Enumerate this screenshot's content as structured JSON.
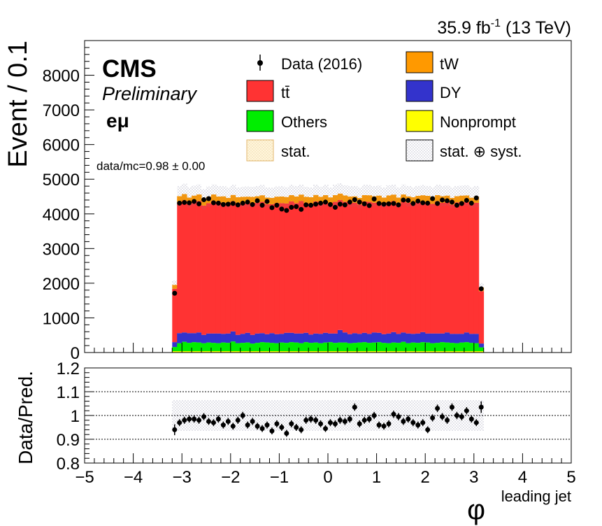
{
  "header": {
    "lumi_value": "35.9 fb",
    "lumi_exp": "-1",
    "lumi_energy": "(13 TeV)"
  },
  "labels": {
    "cms": "CMS",
    "preliminary": "Preliminary",
    "channel": "eμ",
    "data_mc": "data/mc=0.98 ± 0.00"
  },
  "legend": {
    "data": "Data (2016)",
    "ttbar": "tt̄",
    "others": "Others",
    "stat": "stat.",
    "tw": "tW",
    "dy": "DY",
    "nonprompt": "Nonprompt",
    "statsyst": "stat. ⊕ syst."
  },
  "colors": {
    "ttbar": "#ff3333",
    "tw": "#ff9900",
    "dy": "#3333cc",
    "others": "#00ee00",
    "nonprompt": "#ffff00",
    "data": "#000000"
  },
  "chart_data": [
    {
      "type": "bar",
      "stacked": true,
      "ylabel": "Event / 0.1",
      "xlim": [
        -5,
        5
      ],
      "ylim": [
        0,
        9000
      ],
      "yticks": [
        0,
        1000,
        2000,
        3000,
        4000,
        5000,
        6000,
        7000,
        8000
      ],
      "bin_width": 0.1,
      "x_start": -3.2,
      "components": {
        "nonprompt": [
          40,
          40,
          40,
          40,
          40,
          40,
          40,
          40,
          40,
          40,
          40,
          40,
          40,
          40,
          40,
          40,
          40,
          40,
          40,
          40,
          40,
          40,
          40,
          40,
          40,
          40,
          40,
          40,
          40,
          40,
          40,
          40,
          40,
          40,
          40,
          40,
          40,
          40,
          40,
          40,
          40,
          40,
          40,
          40,
          40,
          40,
          40,
          40,
          40,
          40,
          40,
          40,
          40,
          40,
          40,
          40,
          40,
          40,
          40,
          40,
          40,
          40,
          40,
          40
        ],
        "others": [
          120,
          230,
          270,
          240,
          260,
          250,
          230,
          250,
          240,
          230,
          250,
          240,
          280,
          230,
          240,
          250,
          220,
          240,
          260,
          250,
          240,
          230,
          250,
          240,
          260,
          250,
          230,
          260,
          240,
          250,
          230,
          250,
          260,
          240,
          250,
          250,
          230,
          240,
          250,
          260,
          240,
          250,
          260,
          240,
          230,
          250,
          240,
          270,
          230,
          250,
          240,
          260,
          250,
          230,
          240,
          260,
          250,
          240,
          230,
          250,
          260,
          240,
          230,
          110
        ],
        "dy": [
          140,
          290,
          270,
          280,
          260,
          290,
          240,
          260,
          270,
          280,
          250,
          270,
          290,
          240,
          260,
          280,
          250,
          270,
          260,
          240,
          280,
          260,
          250,
          290,
          270,
          260,
          280,
          270,
          240,
          260,
          270,
          280,
          250,
          270,
          360,
          290,
          260,
          280,
          250,
          270,
          260,
          290,
          270,
          250,
          280,
          300,
          260,
          270,
          280,
          250,
          270,
          290,
          260,
          280,
          270,
          250,
          290,
          260,
          270,
          250,
          280,
          260,
          270,
          110
        ],
        "ttbar": [
          1540,
          3760,
          3810,
          3720,
          3780,
          3790,
          3730,
          3760,
          3820,
          3770,
          3780,
          3720,
          3750,
          3790,
          3760,
          3740,
          3800,
          3770,
          3790,
          3750,
          3720,
          3780,
          3770,
          3730,
          3790,
          3760,
          3820,
          3740,
          3770,
          3810,
          3760,
          3790,
          3740,
          3800,
          3750,
          3770,
          3780,
          3760,
          3730,
          3790,
          3810,
          3740,
          3770,
          3760,
          3790,
          3780,
          3740,
          3800,
          3770,
          3750,
          3790,
          3760,
          3780,
          3740,
          3810,
          3770,
          3760,
          3730,
          3790,
          3800,
          3760,
          3740,
          3780,
          1510
        ],
        "tw": [
          110,
          190,
          180,
          190,
          185,
          190,
          180,
          185,
          190,
          180,
          185,
          190,
          185,
          180,
          190,
          185,
          180,
          190,
          185,
          190,
          180,
          185,
          190,
          185,
          180,
          190,
          185,
          180,
          190,
          185,
          190,
          180,
          185,
          190,
          185,
          180,
          190,
          185,
          190,
          180,
          185,
          190,
          185,
          180,
          190,
          185,
          190,
          180,
          185,
          190,
          180,
          185,
          190,
          185,
          180,
          190,
          185,
          190,
          180,
          185,
          190,
          185,
          180,
          110
        ]
      },
      "data": [
        1710,
        4310,
        4330,
        4320,
        4360,
        4290,
        4410,
        4440,
        4320,
        4310,
        4270,
        4280,
        4300,
        4260,
        4310,
        4340,
        4270,
        4380,
        4250,
        4360,
        4180,
        4250,
        4140,
        4100,
        4190,
        4210,
        4130,
        4260,
        4250,
        4280,
        4310,
        4340,
        4270,
        4190,
        4280,
        4260,
        4340,
        4410,
        4340,
        4290,
        4240,
        4430,
        4300,
        4280,
        4290,
        4300,
        4260,
        4400,
        4390,
        4300,
        4370,
        4320,
        4310,
        4440,
        4300,
        4400,
        4380,
        4340,
        4250,
        4300,
        4390,
        4310,
        4460,
        1840
      ],
      "stat_syst_frac": 0.065
    },
    {
      "type": "scatter",
      "ylabel": "Data/Pred.",
      "xlabel": "φ",
      "xlabel_sub": "leading jet",
      "xlim": [
        -5,
        5
      ],
      "ylim": [
        0.8,
        1.2
      ],
      "yticks": [
        0.8,
        0.9,
        1,
        1.1,
        1.2
      ],
      "xticks": [
        -5,
        -4,
        -3,
        -2,
        -1,
        0,
        1,
        2,
        3,
        4,
        5
      ],
      "ratio": [
        0.94,
        0.97,
        0.98,
        0.985,
        0.985,
        0.98,
        0.995,
        0.975,
        0.97,
        0.985,
        0.96,
        0.975,
        0.955,
        0.98,
        1.0,
        0.96,
        0.975,
        0.955,
        0.945,
        0.96,
        0.935,
        0.965,
        0.95,
        0.925,
        0.965,
        0.95,
        0.94,
        0.98,
        0.985,
        0.98,
        0.965,
        0.945,
        0.97,
        0.965,
        0.98,
        0.975,
        0.985,
        1.035,
        0.965,
        0.98,
        0.985,
        1.0,
        0.96,
        0.955,
        0.965,
        1.005,
        0.995,
        0.975,
        0.985,
        0.97,
        0.96,
        0.97,
        0.94,
        0.99,
        1.03,
        0.995,
        0.98,
        1.035,
        1.0,
        0.995,
        1.02,
        0.985,
        0.97,
        1.035
      ],
      "ref_lines": [
        0.9,
        1.0,
        1.1
      ]
    }
  ]
}
